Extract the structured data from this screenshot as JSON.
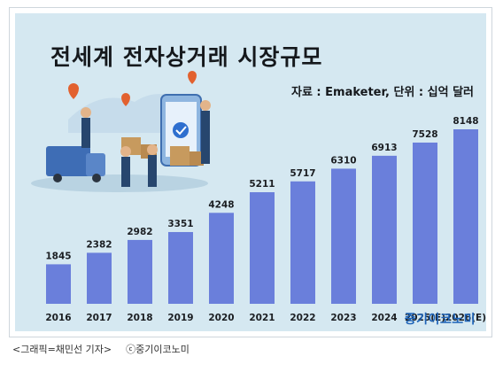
{
  "header": {
    "title": "전세계 전자상거래 시장규모",
    "source_unit": "자료 : Emaketer, 단위 : 십억 달러"
  },
  "brand": "중기이코노미",
  "caption": {
    "credit": "<그래픽=채민선 기자>",
    "copyright": "ⓒ중기이코노미"
  },
  "chart_data": {
    "type": "bar",
    "title": "전세계 전자상거래 시장규모",
    "xlabel": "",
    "ylabel": "",
    "unit": "십억 달러",
    "categories": [
      "2016",
      "2017",
      "2018",
      "2019",
      "2020",
      "2021",
      "2022",
      "2023",
      "2024",
      "2025(E)",
      "2026(E)"
    ],
    "values": [
      1845,
      2382,
      2982,
      3351,
      4248,
      5211,
      5717,
      6310,
      6913,
      7528,
      8148
    ],
    "ylim": [
      0,
      9000
    ],
    "grid": false,
    "legend": "none",
    "bar_color": "#6a7fdb"
  }
}
